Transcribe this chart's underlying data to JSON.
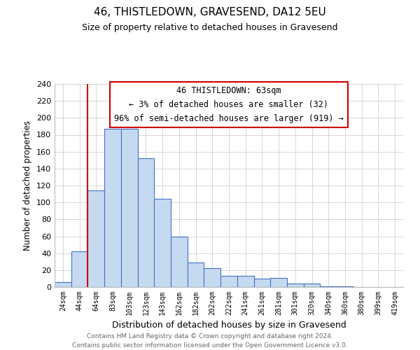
{
  "title": "46, THISTLEDOWN, GRAVESEND, DA12 5EU",
  "subtitle": "Size of property relative to detached houses in Gravesend",
  "xlabel": "Distribution of detached houses by size in Gravesend",
  "ylabel": "Number of detached properties",
  "bar_labels": [
    "24sqm",
    "44sqm",
    "64sqm",
    "83sqm",
    "103sqm",
    "123sqm",
    "143sqm",
    "162sqm",
    "182sqm",
    "202sqm",
    "222sqm",
    "241sqm",
    "261sqm",
    "281sqm",
    "301sqm",
    "320sqm",
    "340sqm",
    "360sqm",
    "380sqm",
    "399sqm",
    "419sqm"
  ],
  "bar_values": [
    6,
    42,
    114,
    187,
    187,
    152,
    104,
    60,
    29,
    22,
    13,
    13,
    10,
    11,
    4,
    4,
    1,
    1,
    0,
    0,
    0
  ],
  "bar_color": "#c5d9f1",
  "bar_edge_color": "#4472c4",
  "ylim": [
    0,
    240
  ],
  "yticks": [
    0,
    20,
    40,
    60,
    80,
    100,
    120,
    140,
    160,
    180,
    200,
    220,
    240
  ],
  "annotation_title": "46 THISTLEDOWN: 63sqm",
  "annotation_line1": "← 3% of detached houses are smaller (32)",
  "annotation_line2": "96% of semi-detached houses are larger (919) →",
  "annotation_box_color": "#ffffff",
  "annotation_box_edge": "#cc0000",
  "property_line_color": "#cc0000",
  "footer_line1": "Contains HM Land Registry data © Crown copyright and database right 2024.",
  "footer_line2": "Contains public sector information licensed under the Open Government Licence v3.0.",
  "background_color": "#ffffff",
  "grid_color": "#d0d0d0"
}
